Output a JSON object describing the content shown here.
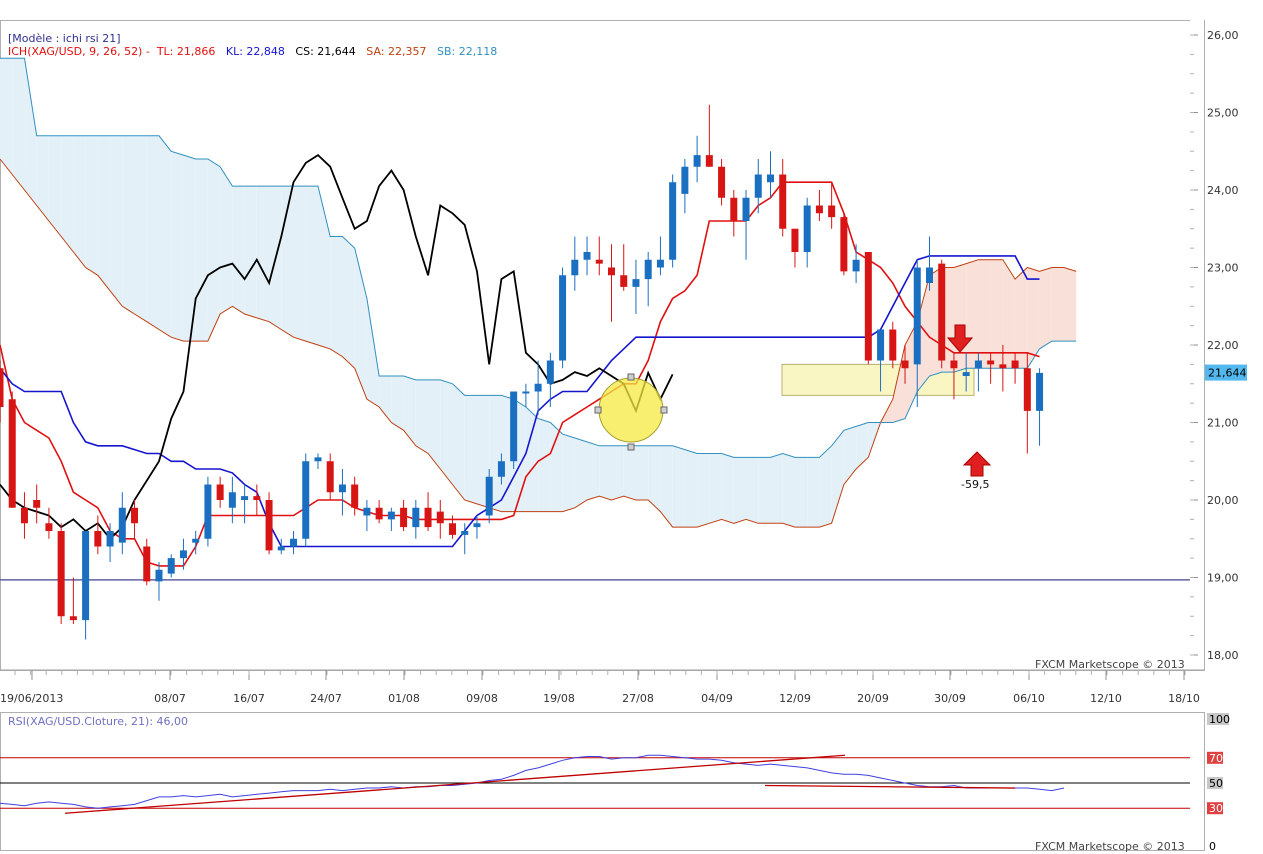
{
  "header": {
    "model": "[Modèle : ichi rsi 21]",
    "indicator": "ICH(XAG/USD, 9, 26, 52) -",
    "tl": "TL: 21,866",
    "kl": "KL: 22,848",
    "cs": "CS: 21,644",
    "sa": "SA: 22,357",
    "sb": "SB: 22,118"
  },
  "watermark": "FXCM Marketscope © 2013",
  "rsi_label": "RSI(XAG/USD.Cloture, 21): 46,00",
  "price_label": "21,644",
  "annotation": "-59,5",
  "colors": {
    "tenkan": "#e01010",
    "kijun": "#1515d0",
    "chikou": "#000000",
    "cloud_bear_fill": "#f9e0d8",
    "cloud_bull_fill": "#e4f0f8",
    "senkou_a": "#c04010",
    "senkou_b": "#3090c0",
    "candle_up": "#1a6fc0",
    "candle_down": "#d81515",
    "rsi_line": "#4040e0",
    "level": "#c00000"
  },
  "chart_data": [
    {
      "type": "candlestick",
      "title": "ICH(XAG/USD, 9, 26, 52)",
      "x_tick_labels": [
        "19/06/2013",
        "08/07",
        "16/07",
        "24/07",
        "01/08",
        "09/08",
        "19/08",
        "27/08",
        "04/09",
        "12/09",
        "20/09",
        "30/09",
        "06/10",
        "12/10",
        "18/10"
      ],
      "y_tick_labels": [
        "18,00",
        "19,00",
        "20,00",
        "21,00",
        "22,00",
        "23,00",
        "24,00",
        "25,00",
        "26,00"
      ],
      "ylim": [
        17.8,
        26.2
      ],
      "horizontal_line": 18.97,
      "candles": [
        {
          "o": 21.7,
          "h": 21.8,
          "l": 21.0,
          "c": 21.2
        },
        {
          "o": 21.3,
          "h": 21.4,
          "l": 19.9,
          "c": 19.9
        },
        {
          "o": 19.9,
          "h": 20.1,
          "l": 19.5,
          "c": 19.7
        },
        {
          "o": 20.0,
          "h": 20.2,
          "l": 19.7,
          "c": 19.9
        },
        {
          "o": 19.7,
          "h": 19.9,
          "l": 19.5,
          "c": 19.6
        },
        {
          "o": 19.6,
          "h": 19.7,
          "l": 18.4,
          "c": 18.5
        },
        {
          "o": 18.5,
          "h": 19.0,
          "l": 18.4,
          "c": 18.45
        },
        {
          "o": 18.45,
          "h": 19.6,
          "l": 18.2,
          "c": 19.6
        },
        {
          "o": 19.6,
          "h": 19.8,
          "l": 19.3,
          "c": 19.4
        },
        {
          "o": 19.4,
          "h": 19.7,
          "l": 19.2,
          "c": 19.6
        },
        {
          "o": 19.45,
          "h": 20.1,
          "l": 19.3,
          "c": 19.9
        },
        {
          "o": 19.9,
          "h": 20.0,
          "l": 19.5,
          "c": 19.7
        },
        {
          "o": 19.4,
          "h": 19.5,
          "l": 18.9,
          "c": 18.95
        },
        {
          "o": 18.95,
          "h": 19.2,
          "l": 18.7,
          "c": 19.1
        },
        {
          "o": 19.05,
          "h": 19.3,
          "l": 19.0,
          "c": 19.25
        },
        {
          "o": 19.25,
          "h": 19.5,
          "l": 19.1,
          "c": 19.35
        },
        {
          "o": 19.45,
          "h": 19.6,
          "l": 19.3,
          "c": 19.5
        },
        {
          "o": 19.5,
          "h": 20.3,
          "l": 19.4,
          "c": 20.2
        },
        {
          "o": 20.2,
          "h": 20.3,
          "l": 19.9,
          "c": 20.0
        },
        {
          "o": 19.9,
          "h": 20.3,
          "l": 19.7,
          "c": 20.1
        },
        {
          "o": 20.0,
          "h": 20.2,
          "l": 19.7,
          "c": 20.05
        },
        {
          "o": 20.05,
          "h": 20.2,
          "l": 19.8,
          "c": 20.0
        },
        {
          "o": 20.0,
          "h": 20.1,
          "l": 19.3,
          "c": 19.35
        },
        {
          "o": 19.35,
          "h": 19.5,
          "l": 19.3,
          "c": 19.4
        },
        {
          "o": 19.4,
          "h": 19.6,
          "l": 19.3,
          "c": 19.5
        },
        {
          "o": 19.5,
          "h": 20.6,
          "l": 19.4,
          "c": 20.5
        },
        {
          "o": 20.5,
          "h": 20.6,
          "l": 20.4,
          "c": 20.55
        },
        {
          "o": 20.5,
          "h": 20.6,
          "l": 20.0,
          "c": 20.1
        },
        {
          "o": 20.1,
          "h": 20.4,
          "l": 19.8,
          "c": 20.2
        },
        {
          "o": 20.2,
          "h": 20.3,
          "l": 19.8,
          "c": 19.9
        },
        {
          "o": 19.8,
          "h": 20.0,
          "l": 19.6,
          "c": 19.9
        },
        {
          "o": 19.9,
          "h": 20.0,
          "l": 19.7,
          "c": 19.75
        },
        {
          "o": 19.75,
          "h": 19.9,
          "l": 19.6,
          "c": 19.85
        },
        {
          "o": 19.9,
          "h": 20.0,
          "l": 19.6,
          "c": 19.65
        },
        {
          "o": 19.65,
          "h": 20.0,
          "l": 19.5,
          "c": 19.9
        },
        {
          "o": 19.9,
          "h": 20.1,
          "l": 19.6,
          "c": 19.65
        },
        {
          "o": 19.85,
          "h": 20.0,
          "l": 19.5,
          "c": 19.7
        },
        {
          "o": 19.7,
          "h": 19.8,
          "l": 19.5,
          "c": 19.55
        },
        {
          "o": 19.55,
          "h": 19.7,
          "l": 19.3,
          "c": 19.6
        },
        {
          "o": 19.65,
          "h": 19.8,
          "l": 19.5,
          "c": 19.7
        },
        {
          "o": 19.8,
          "h": 20.4,
          "l": 19.7,
          "c": 20.3
        },
        {
          "o": 20.3,
          "h": 20.6,
          "l": 20.2,
          "c": 20.5
        },
        {
          "o": 20.5,
          "h": 21.4,
          "l": 20.4,
          "c": 21.4
        },
        {
          "o": 21.4,
          "h": 21.5,
          "l": 21.2,
          "c": 21.4
        },
        {
          "o": 21.4,
          "h": 21.8,
          "l": 21.1,
          "c": 21.5
        },
        {
          "o": 21.5,
          "h": 21.9,
          "l": 21.2,
          "c": 21.8
        },
        {
          "o": 21.8,
          "h": 23.0,
          "l": 21.7,
          "c": 22.9
        },
        {
          "o": 22.9,
          "h": 23.4,
          "l": 22.7,
          "c": 23.1
        },
        {
          "o": 23.1,
          "h": 23.4,
          "l": 22.9,
          "c": 23.2
        },
        {
          "o": 23.1,
          "h": 23.4,
          "l": 22.9,
          "c": 23.05
        },
        {
          "o": 23.0,
          "h": 23.3,
          "l": 22.3,
          "c": 22.9
        },
        {
          "o": 22.9,
          "h": 23.3,
          "l": 22.7,
          "c": 22.75
        },
        {
          "o": 22.75,
          "h": 23.1,
          "l": 22.4,
          "c": 22.85
        },
        {
          "o": 22.85,
          "h": 23.2,
          "l": 22.5,
          "c": 23.1
        },
        {
          "o": 23.0,
          "h": 23.4,
          "l": 22.9,
          "c": 23.1
        },
        {
          "o": 23.1,
          "h": 24.2,
          "l": 23.0,
          "c": 24.1
        },
        {
          "o": 23.95,
          "h": 24.4,
          "l": 23.7,
          "c": 24.3
        },
        {
          "o": 24.3,
          "h": 24.7,
          "l": 24.1,
          "c": 24.45
        },
        {
          "o": 24.45,
          "h": 25.1,
          "l": 24.3,
          "c": 24.3
        },
        {
          "o": 24.3,
          "h": 24.4,
          "l": 23.8,
          "c": 23.9
        },
        {
          "o": 23.9,
          "h": 24.0,
          "l": 23.4,
          "c": 23.6
        },
        {
          "o": 23.6,
          "h": 24.0,
          "l": 23.1,
          "c": 23.9
        },
        {
          "o": 23.9,
          "h": 24.4,
          "l": 23.7,
          "c": 24.2
        },
        {
          "o": 24.1,
          "h": 24.5,
          "l": 23.9,
          "c": 24.2
        },
        {
          "o": 24.2,
          "h": 24.4,
          "l": 23.4,
          "c": 23.5
        },
        {
          "o": 23.5,
          "h": 23.5,
          "l": 23.0,
          "c": 23.2
        },
        {
          "o": 23.2,
          "h": 23.9,
          "l": 23.0,
          "c": 23.8
        },
        {
          "o": 23.8,
          "h": 24.0,
          "l": 23.6,
          "c": 23.7
        },
        {
          "o": 23.8,
          "h": 24.1,
          "l": 23.5,
          "c": 23.65
        },
        {
          "o": 23.65,
          "h": 23.7,
          "l": 22.9,
          "c": 22.95
        },
        {
          "o": 22.95,
          "h": 23.3,
          "l": 22.8,
          "c": 23.1
        },
        {
          "o": 23.2,
          "h": 23.2,
          "l": 21.75,
          "c": 21.8
        },
        {
          "o": 21.8,
          "h": 22.2,
          "l": 21.4,
          "c": 22.2
        },
        {
          "o": 22.2,
          "h": 22.3,
          "l": 21.7,
          "c": 21.8
        },
        {
          "o": 21.8,
          "h": 22.0,
          "l": 21.5,
          "c": 21.7
        },
        {
          "o": 21.75,
          "h": 23.1,
          "l": 21.2,
          "c": 23.0
        },
        {
          "o": 22.8,
          "h": 23.4,
          "l": 22.7,
          "c": 23.0
        },
        {
          "o": 23.05,
          "h": 23.1,
          "l": 21.7,
          "c": 21.8
        },
        {
          "o": 21.8,
          "h": 21.9,
          "l": 21.3,
          "c": 21.7
        },
        {
          "o": 21.6,
          "h": 21.9,
          "l": 21.4,
          "c": 21.65
        },
        {
          "o": 21.7,
          "h": 21.9,
          "l": 21.4,
          "c": 21.8
        },
        {
          "o": 21.8,
          "h": 21.9,
          "l": 21.5,
          "c": 21.75
        },
        {
          "o": 21.75,
          "h": 22.0,
          "l": 21.4,
          "c": 21.7
        },
        {
          "o": 21.8,
          "h": 21.9,
          "l": 21.5,
          "c": 21.7
        },
        {
          "o": 21.7,
          "h": 21.9,
          "l": 20.6,
          "c": 21.15
        },
        {
          "o": 21.15,
          "h": 21.7,
          "l": 20.7,
          "c": 21.64
        }
      ],
      "tenkan": [
        22.0,
        21.3,
        21.0,
        20.9,
        20.8,
        20.5,
        20.1,
        20.0,
        19.9,
        19.6,
        19.5,
        19.5,
        19.2,
        19.15,
        19.15,
        19.15,
        19.4,
        19.8,
        19.8,
        19.8,
        19.8,
        19.8,
        19.8,
        19.8,
        19.8,
        19.9,
        20.0,
        20.0,
        20.0,
        19.9,
        19.85,
        19.8,
        19.8,
        19.8,
        19.75,
        19.75,
        19.75,
        19.75,
        19.75,
        19.75,
        19.75,
        19.75,
        19.8,
        20.3,
        20.5,
        20.6,
        21.0,
        21.1,
        21.2,
        21.3,
        21.4,
        21.5,
        21.5,
        21.8,
        22.3,
        22.6,
        22.7,
        22.9,
        23.6,
        23.6,
        23.6,
        23.6,
        23.8,
        23.9,
        24.1,
        24.1,
        24.1,
        24.1,
        24.1,
        23.7,
        23.2,
        23.1,
        23.0,
        22.8,
        22.5,
        22.3,
        22.1,
        22.0,
        21.9,
        21.9,
        21.9,
        21.9,
        21.9,
        21.9,
        21.9,
        21.85
      ],
      "kijun": [
        21.7,
        21.5,
        21.4,
        21.4,
        21.4,
        21.4,
        21.0,
        20.75,
        20.7,
        20.7,
        20.7,
        20.65,
        20.6,
        20.6,
        20.5,
        20.5,
        20.4,
        20.4,
        20.4,
        20.35,
        20.2,
        20.1,
        19.7,
        19.4,
        19.4,
        19.4,
        19.4,
        19.4,
        19.4,
        19.4,
        19.4,
        19.4,
        19.4,
        19.4,
        19.4,
        19.4,
        19.4,
        19.4,
        19.6,
        19.8,
        19.9,
        20.0,
        20.3,
        20.6,
        21.15,
        21.3,
        21.4,
        21.4,
        21.4,
        21.6,
        21.8,
        21.95,
        22.1,
        22.1,
        22.1,
        22.1,
        22.1,
        22.1,
        22.1,
        22.1,
        22.1,
        22.1,
        22.1,
        22.1,
        22.1,
        22.1,
        22.1,
        22.1,
        22.1,
        22.1,
        22.1,
        22.1,
        22.2,
        22.5,
        22.8,
        23.1,
        23.15,
        23.15,
        23.15,
        23.15,
        23.15,
        23.15,
        23.15,
        23.15,
        22.85,
        22.85
      ],
      "chikou": [
        20.2,
        20.0,
        19.9,
        19.85,
        19.8,
        19.65,
        19.75,
        19.6,
        19.7,
        19.5,
        19.65,
        20.0,
        20.25,
        20.5,
        21.05,
        21.4,
        22.6,
        22.9,
        23.0,
        23.05,
        22.85,
        23.1,
        22.8,
        23.4,
        24.1,
        24.35,
        24.45,
        24.3,
        23.9,
        23.5,
        23.6,
        24.05,
        24.25,
        24.0,
        23.4,
        22.9,
        23.8,
        23.7,
        23.55,
        22.95,
        21.75,
        22.85,
        22.95,
        21.9,
        21.75,
        21.5,
        21.55,
        21.65,
        21.6,
        21.7,
        21.6,
        21.5,
        21.15,
        21.64,
        21.3,
        21.62
      ],
      "senkou_a": [
        24.4,
        24.2,
        24.0,
        23.8,
        23.6,
        23.4,
        23.2,
        23.0,
        22.9,
        22.7,
        22.5,
        22.4,
        22.3,
        22.2,
        22.1,
        22.05,
        22.05,
        22.05,
        22.4,
        22.5,
        22.4,
        22.35,
        22.3,
        22.2,
        22.1,
        22.05,
        22.0,
        21.95,
        21.85,
        21.7,
        21.3,
        21.2,
        21.0,
        20.9,
        20.7,
        20.6,
        20.4,
        20.2,
        20.0,
        19.95,
        19.9,
        19.85,
        19.85,
        19.85,
        19.85,
        19.85,
        19.85,
        19.9,
        20.0,
        20.05,
        20.0,
        20.05,
        20.0,
        20.0,
        19.85,
        19.65,
        19.65,
        19.65,
        19.7,
        19.75,
        19.7,
        19.75,
        19.7,
        19.7,
        19.7,
        19.65,
        19.65,
        19.65,
        19.7,
        20.2,
        20.4,
        20.55,
        21.0,
        21.3,
        22.0,
        22.3,
        22.9,
        23.0,
        23.0,
        23.05,
        23.1,
        23.1,
        23.1,
        22.85,
        23.0,
        22.95,
        23.0,
        23.0,
        22.95
      ],
      "senkou_b": [
        25.7,
        25.7,
        25.7,
        24.7,
        24.7,
        24.7,
        24.7,
        24.7,
        24.7,
        24.7,
        24.7,
        24.7,
        24.7,
        24.7,
        24.5,
        24.45,
        24.4,
        24.4,
        24.3,
        24.05,
        24.05,
        24.05,
        24.05,
        24.05,
        24.05,
        24.05,
        24.05,
        23.4,
        23.4,
        23.25,
        22.6,
        21.6,
        21.6,
        21.6,
        21.55,
        21.55,
        21.55,
        21.5,
        21.35,
        21.35,
        21.35,
        21.35,
        21.3,
        21.2,
        21.05,
        21.0,
        20.85,
        20.8,
        20.75,
        20.7,
        20.7,
        20.7,
        20.7,
        20.7,
        20.7,
        20.7,
        20.65,
        20.6,
        20.6,
        20.6,
        20.55,
        20.55,
        20.55,
        20.55,
        20.6,
        20.55,
        20.55,
        20.55,
        20.7,
        20.9,
        20.95,
        21.0,
        21.0,
        21.0,
        21.05,
        21.4,
        21.6,
        21.65,
        21.65,
        21.7,
        21.7,
        21.7,
        21.7,
        21.7,
        21.7,
        21.95,
        22.05,
        22.05,
        22.05
      ]
    },
    {
      "type": "line",
      "title": "RSI(XAG/USD.Cloture, 21): 46,00",
      "y_tick_labels": [
        "100",
        "70",
        "50",
        "30",
        "0"
      ],
      "ylim": [
        0,
        100
      ],
      "levels": [
        70,
        50,
        30
      ],
      "values": [
        34,
        33,
        32,
        34,
        35,
        34,
        33,
        31,
        30,
        31,
        32,
        33,
        36,
        39,
        39,
        40,
        39,
        40,
        41,
        39,
        40,
        41,
        42,
        43,
        44,
        44,
        44,
        45,
        44,
        45,
        46,
        46,
        47,
        46,
        47,
        47,
        48,
        48,
        49,
        50,
        52,
        53,
        56,
        60,
        62,
        65,
        68,
        70,
        71,
        71,
        69,
        70,
        70,
        72,
        72,
        71,
        70,
        69,
        69,
        68,
        66,
        65,
        64,
        65,
        64,
        63,
        62,
        60,
        58,
        57,
        57,
        56,
        54,
        52,
        50,
        48,
        47,
        47,
        48,
        46,
        46,
        46,
        46,
        46,
        46,
        45,
        44,
        46
      ]
    }
  ]
}
